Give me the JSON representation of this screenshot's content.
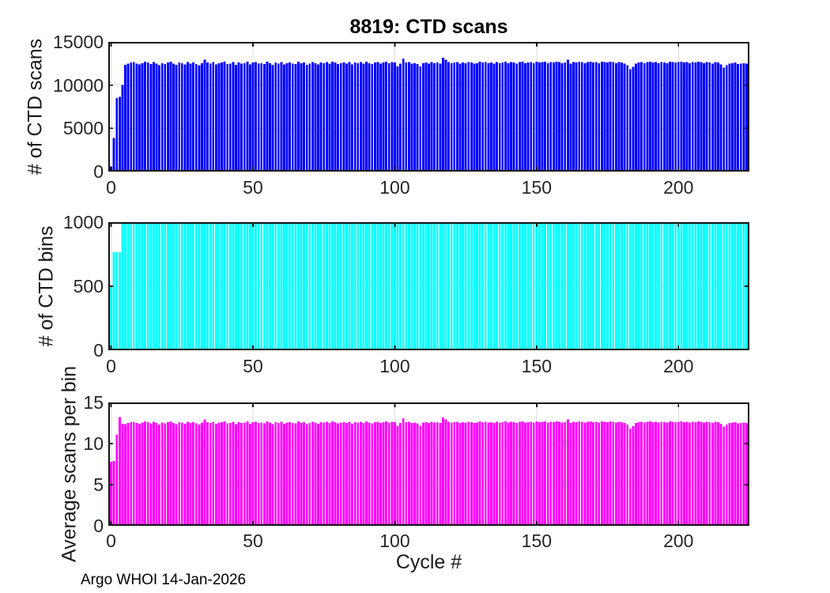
{
  "page": {
    "footer": "Argo WHOI 14-Jan-2026"
  },
  "x_axis": {
    "xlim": [
      -1,
      225
    ],
    "ticks": [
      0,
      50,
      100,
      150,
      200
    ],
    "tick_labels": [
      "0",
      "50",
      "100",
      "150",
      "200"
    ],
    "xlabel": "Cycle #"
  },
  "chart_data": [
    {
      "type": "bar",
      "title": "8819: CTD scans",
      "ylabel": "# of CTD scans",
      "xlabel": "",
      "color": "#0000ff",
      "grid": true,
      "ylim": [
        0,
        15000
      ],
      "yticks": [
        0,
        5000,
        10000,
        15000
      ],
      "ytick_labels": [
        "0",
        "5000",
        "10000",
        "15000"
      ],
      "x_start": 0,
      "values": [
        600,
        3900,
        8500,
        8650,
        10000,
        12350,
        12500,
        12600,
        12650,
        12500,
        12400,
        12550,
        12700,
        12600,
        12450,
        12650,
        12500,
        12300,
        12550,
        12450,
        12600,
        12700,
        12500,
        12350,
        12600,
        12550,
        12400,
        12650,
        12500,
        12600,
        12450,
        12300,
        12550,
        12950,
        12600,
        12500,
        12650,
        12400,
        12550,
        12600,
        12700,
        12450,
        12500,
        12650,
        12350,
        12600,
        12500,
        12550,
        12700,
        12400,
        12600,
        12650,
        12500,
        12550,
        12450,
        12700,
        12550,
        12350,
        12600,
        12500,
        12650,
        12400,
        12550,
        12600,
        12500,
        12450,
        12700,
        12550,
        12600,
        12350,
        12500,
        12650,
        12550,
        12400,
        12600,
        12550,
        12650,
        12500,
        12700,
        12600,
        12450,
        12550,
        12600,
        12500,
        12650,
        12400,
        12600,
        12550,
        12650,
        12500,
        12700,
        12550,
        12450,
        12600,
        12650,
        12500,
        12600,
        12700,
        12550,
        12650,
        12600,
        12150,
        12500,
        13100,
        12600,
        12650,
        12500,
        12550,
        12450,
        12150,
        12550,
        12600,
        12500,
        12650,
        12550,
        12600,
        12500,
        13150,
        12950,
        12650,
        12550,
        12600,
        12650,
        12500,
        12600,
        12550,
        12650,
        12600,
        12500,
        12550,
        12700,
        12600,
        12650,
        12550,
        12600,
        12500,
        12650,
        12550,
        12600,
        12700,
        12550,
        12650,
        12600,
        12500,
        12650,
        12700,
        12550,
        12600,
        12650,
        12550,
        12700,
        12600,
        12650,
        12700,
        12550,
        12650,
        12600,
        12700,
        12650,
        12550,
        12600,
        12950,
        12500,
        12650,
        12600,
        12700,
        12650,
        12550,
        12650,
        12700,
        12600,
        12650,
        12550,
        12700,
        12650,
        12600,
        12700,
        12650,
        12550,
        12650,
        12600,
        12500,
        12300,
        11850,
        12100,
        12500,
        12600,
        12650,
        12550,
        12650,
        12700,
        12600,
        12650,
        12550,
        12650,
        12600,
        12550,
        12700,
        12650,
        12600,
        12650,
        12700,
        12600,
        12650,
        12550,
        12650,
        12600,
        12700,
        12650,
        12550,
        12650,
        12600,
        12500,
        12650,
        12600,
        12400,
        12050,
        12300,
        12500,
        12550,
        12600,
        12450,
        12500,
        12550,
        12500
      ]
    },
    {
      "type": "bar",
      "title": "",
      "ylabel": "# of CTD bins",
      "xlabel": "",
      "color": "#00ffff",
      "grid": true,
      "ylim": [
        0,
        1000
      ],
      "yticks": [
        0,
        500,
        1000
      ],
      "ytick_labels": [
        "0",
        "500",
        "1000"
      ],
      "x_start": 0,
      "values": [
        500,
        765,
        770,
        765,
        1000,
        1000,
        1000,
        1000,
        1000,
        1000,
        1000,
        1000,
        1000,
        1000,
        1000,
        1000,
        1000,
        1000,
        1000,
        1000,
        1000,
        1000,
        1000,
        1000,
        1000,
        1000,
        1000,
        1000,
        1000,
        1000,
        1000,
        1000,
        1000,
        1000,
        1000,
        1000,
        1000,
        1000,
        1000,
        1000,
        1000,
        1000,
        1000,
        1000,
        1000,
        1000,
        1000,
        1000,
        1000,
        1000,
        1000,
        1000,
        1000,
        1000,
        1000,
        1000,
        1000,
        1000,
        1000,
        1000,
        1000,
        1000,
        1000,
        1000,
        1000,
        1000,
        1000,
        1000,
        1000,
        1000,
        1000,
        1000,
        1000,
        1000,
        1000,
        1000,
        1000,
        1000,
        1000,
        1000,
        1000,
        1000,
        1000,
        1000,
        1000,
        1000,
        1000,
        1000,
        1000,
        1000,
        1000,
        1000,
        1000,
        1000,
        1000,
        1000,
        1000,
        1000,
        1000,
        1000,
        1000,
        1000,
        1000,
        1000,
        1000,
        1000,
        1000,
        1000,
        1000,
        1000,
        1000,
        1000,
        1000,
        1000,
        1000,
        1000,
        1000,
        1000,
        1000,
        1000,
        1000,
        1000,
        1000,
        1000,
        1000,
        1000,
        1000,
        1000,
        1000,
        1000,
        1000,
        1000,
        1000,
        1000,
        1000,
        1000,
        1000,
        1000,
        1000,
        1000,
        1000,
        1000,
        1000,
        1000,
        1000,
        1000,
        1000,
        1000,
        1000,
        1000,
        1000,
        1000,
        1000,
        1000,
        1000,
        1000,
        1000,
        1000,
        1000,
        1000,
        1000,
        1000,
        1000,
        1000,
        1000,
        1000,
        1000,
        1000,
        1000,
        1000,
        1000,
        1000,
        1000,
        1000,
        1000,
        1000,
        1000,
        1000,
        1000,
        1000,
        1000,
        1000,
        1000,
        1000,
        1000,
        1000,
        1000,
        1000,
        1000,
        1000,
        1000,
        1000,
        1000,
        1000,
        1000,
        1000,
        1000,
        1000,
        1000,
        1000,
        1000,
        1000,
        1000,
        1000,
        1000,
        1000,
        1000,
        1000,
        1000,
        1000,
        1000,
        1000,
        1000,
        1000,
        1000,
        1000,
        1000,
        1000,
        1000,
        1000,
        1000,
        1000,
        1000,
        1000,
        1000
      ]
    },
    {
      "type": "bar",
      "title": "",
      "ylabel": "Average scans per bin",
      "xlabel": "Cycle #",
      "color": "#ff00ff",
      "grid": true,
      "ylim": [
        0,
        15
      ],
      "yticks": [
        0,
        5,
        10,
        15
      ],
      "ytick_labels": [
        "0",
        "5",
        "10",
        "15"
      ],
      "x_start": 0,
      "values": [
        7.8,
        7.9,
        11.1,
        13.2,
        12.4,
        12.35,
        12.5,
        12.6,
        12.65,
        12.5,
        12.4,
        12.55,
        12.7,
        12.6,
        12.45,
        12.65,
        12.5,
        12.3,
        12.55,
        12.45,
        12.6,
        12.7,
        12.5,
        12.35,
        12.6,
        12.55,
        12.4,
        12.65,
        12.5,
        12.6,
        12.45,
        12.3,
        12.55,
        12.95,
        12.6,
        12.5,
        12.65,
        12.4,
        12.55,
        12.6,
        12.7,
        12.45,
        12.5,
        12.65,
        12.35,
        12.6,
        12.5,
        12.55,
        12.7,
        12.4,
        12.6,
        12.65,
        12.5,
        12.55,
        12.45,
        12.7,
        12.55,
        12.35,
        12.6,
        12.5,
        12.65,
        12.4,
        12.55,
        12.6,
        12.5,
        12.45,
        12.7,
        12.55,
        12.6,
        12.35,
        12.5,
        12.65,
        12.55,
        12.4,
        12.6,
        12.55,
        12.65,
        12.5,
        12.7,
        12.6,
        12.45,
        12.55,
        12.6,
        12.5,
        12.65,
        12.4,
        12.6,
        12.55,
        12.65,
        12.5,
        12.7,
        12.55,
        12.45,
        12.6,
        12.65,
        12.5,
        12.6,
        12.7,
        12.55,
        12.65,
        12.6,
        12.15,
        12.5,
        13.1,
        12.6,
        12.65,
        12.5,
        12.55,
        12.45,
        12.15,
        12.55,
        12.6,
        12.5,
        12.65,
        12.55,
        12.6,
        12.5,
        13.15,
        12.95,
        12.65,
        12.55,
        12.6,
        12.65,
        12.5,
        12.6,
        12.55,
        12.65,
        12.6,
        12.5,
        12.55,
        12.7,
        12.6,
        12.65,
        12.55,
        12.6,
        12.5,
        12.65,
        12.55,
        12.6,
        12.7,
        12.55,
        12.65,
        12.6,
        12.5,
        12.65,
        12.7,
        12.55,
        12.6,
        12.65,
        12.55,
        12.7,
        12.6,
        12.65,
        12.7,
        12.55,
        12.65,
        12.6,
        12.7,
        12.65,
        12.55,
        12.6,
        12.95,
        12.5,
        12.65,
        12.6,
        12.7,
        12.65,
        12.55,
        12.65,
        12.7,
        12.6,
        12.65,
        12.55,
        12.7,
        12.65,
        12.6,
        12.7,
        12.65,
        12.55,
        12.65,
        12.6,
        12.5,
        12.3,
        11.85,
        12.1,
        12.5,
        12.6,
        12.65,
        12.55,
        12.65,
        12.7,
        12.6,
        12.65,
        12.55,
        12.65,
        12.6,
        12.55,
        12.7,
        12.65,
        12.6,
        12.65,
        12.7,
        12.6,
        12.65,
        12.55,
        12.65,
        12.6,
        12.7,
        12.65,
        12.55,
        12.65,
        12.6,
        12.5,
        12.65,
        12.6,
        12.4,
        12.05,
        12.3,
        12.5,
        12.55,
        12.6,
        12.45,
        12.5,
        12.55,
        12.5
      ]
    }
  ]
}
